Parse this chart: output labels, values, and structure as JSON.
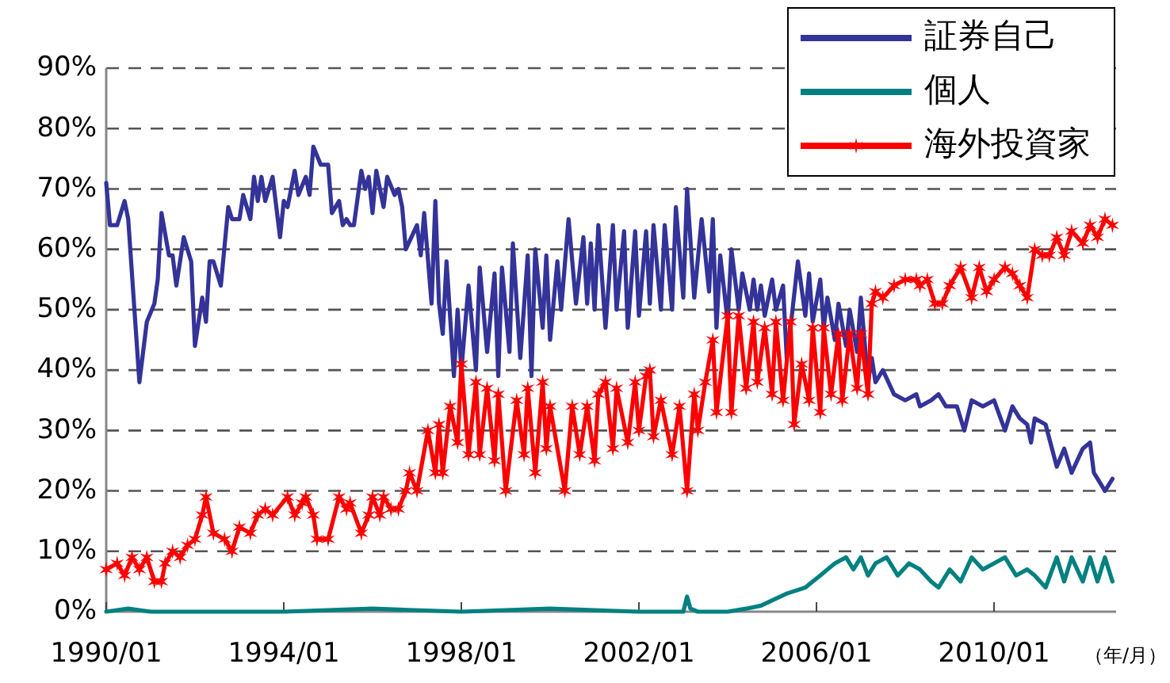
{
  "chart_data": {
    "type": "line",
    "xlabel": "（年/月）",
    "xlim": [
      "1990-01",
      "2012-10"
    ],
    "xticks": [
      {
        "value": "1990-01",
        "label": "1990/01"
      },
      {
        "value": "1994-01",
        "label": "1994/01"
      },
      {
        "value": "1998-01",
        "label": "1998/01"
      },
      {
        "value": "2002-01",
        "label": "2002/01"
      },
      {
        "value": "2006-01",
        "label": "2006/01"
      },
      {
        "value": "2010-01",
        "label": "2010/01"
      }
    ],
    "ylim": [
      0,
      90
    ],
    "yticks": [
      {
        "value": 0,
        "label": "0%"
      },
      {
        "value": 10,
        "label": "10%"
      },
      {
        "value": 20,
        "label": "20%"
      },
      {
        "value": 30,
        "label": "30%"
      },
      {
        "value": 40,
        "label": "40%"
      },
      {
        "value": 50,
        "label": "50%"
      },
      {
        "value": 60,
        "label": "60%"
      },
      {
        "value": 70,
        "label": "70%"
      },
      {
        "value": 80,
        "label": "80%"
      },
      {
        "value": 90,
        "label": "90%"
      }
    ],
    "grid": "y",
    "legend": "top right",
    "series": [
      {
        "name": "証券自己",
        "color": "#333399",
        "marker": "none",
        "x": [
          "1990-01",
          "1990-02",
          "1990-04",
          "1990-06",
          "1990-07",
          "1990-10",
          "1990-12",
          "1991-02",
          "1991-03",
          "1991-04",
          "1991-06",
          "1991-07",
          "1991-08",
          "1991-10",
          "1991-12",
          "1992-01",
          "1992-03",
          "1992-04",
          "1992-05",
          "1992-06",
          "1992-08",
          "1992-10",
          "1992-11",
          "1993-01",
          "1993-02",
          "1993-04",
          "1993-05",
          "1993-06",
          "1993-07",
          "1993-08",
          "1993-10",
          "1993-12",
          "1994-01",
          "1994-02",
          "1994-04",
          "1994-05",
          "1994-07",
          "1994-08",
          "1994-09",
          "1994-11",
          "1995-01",
          "1995-02",
          "1995-04",
          "1995-05",
          "1995-06",
          "1995-07",
          "1995-08",
          "1995-10",
          "1995-11",
          "1995-12",
          "1996-01",
          "1996-02",
          "1996-04",
          "1996-05",
          "1996-07",
          "1996-08",
          "1996-09",
          "1996-10",
          "1997-01",
          "1997-02",
          "1997-03",
          "1997-05",
          "1997-06",
          "1997-07",
          "1997-08",
          "1997-09",
          "1997-11",
          "1997-12",
          "1998-01",
          "1998-03",
          "1998-05",
          "1998-06",
          "1998-08",
          "1998-10",
          "1998-11",
          "1998-12",
          "1999-02",
          "1999-03",
          "1999-05",
          "1999-07",
          "1999-08",
          "1999-09",
          "1999-11",
          "1999-12",
          "2000-01",
          "2000-03",
          "2000-04",
          "2000-06",
          "2000-08",
          "2000-10",
          "2000-11",
          "2000-12",
          "2001-01",
          "2001-02",
          "2001-04",
          "2001-06",
          "2001-07",
          "2001-09",
          "2001-10",
          "2001-12",
          "2002-01",
          "2002-03",
          "2002-04",
          "2002-05",
          "2002-07",
          "2002-08",
          "2002-10",
          "2002-11",
          "2003-01",
          "2003-02",
          "2003-04",
          "2003-06",
          "2003-08",
          "2003-09",
          "2003-10",
          "2003-11",
          "2004-01",
          "2004-02",
          "2004-04",
          "2004-05",
          "2004-07",
          "2004-08",
          "2004-09",
          "2004-10",
          "2004-11",
          "2005-01",
          "2005-02",
          "2005-04",
          "2005-05",
          "2005-06",
          "2005-08",
          "2005-10",
          "2005-11",
          "2005-12",
          "2006-02",
          "2006-03",
          "2006-04",
          "2006-06",
          "2006-07",
          "2006-09",
          "2006-10",
          "2006-12",
          "2007-01",
          "2007-03",
          "2007-04",
          "2007-05",
          "2007-07",
          "2007-10",
          "2008-01",
          "2008-04",
          "2008-05",
          "2008-08",
          "2008-10",
          "2008-12",
          "2009-03",
          "2009-05",
          "2009-07",
          "2009-10",
          "2010-01",
          "2010-04",
          "2010-06",
          "2010-08",
          "2010-10",
          "2010-11",
          "2010-12",
          "2011-03",
          "2011-06",
          "2011-08",
          "2011-10",
          "2012-01",
          "2012-03",
          "2012-04",
          "2012-06",
          "2012-07",
          "2012-09"
        ],
        "values": [
          71,
          64,
          64,
          68,
          65,
          38,
          48,
          51,
          55,
          66,
          59,
          59,
          54,
          62,
          58,
          44,
          52,
          48,
          58,
          58,
          54,
          67,
          65,
          65,
          69,
          65,
          72,
          68,
          72,
          68,
          72,
          62,
          68,
          67,
          73,
          69,
          72,
          69,
          77,
          74,
          74,
          66,
          68,
          64,
          65,
          64,
          64,
          73,
          70,
          72,
          66,
          73,
          67,
          72,
          69,
          70,
          67,
          60,
          64,
          59,
          66,
          51,
          68,
          51,
          46,
          58,
          39,
          50,
          40,
          54,
          40,
          57,
          43,
          56,
          39,
          57,
          43,
          61,
          42,
          59,
          39,
          60,
          47,
          59,
          45,
          58,
          50,
          65,
          51,
          62,
          51,
          61,
          50,
          64,
          47,
          64,
          50,
          63,
          47,
          63,
          49,
          63,
          51,
          64,
          50,
          64,
          50,
          67,
          52,
          70,
          52,
          65,
          53,
          65,
          47,
          59,
          48,
          60,
          50,
          56,
          50,
          55,
          50,
          54,
          49,
          55,
          50,
          54,
          42,
          47,
          58,
          49,
          56,
          48,
          55,
          47,
          52,
          45,
          51,
          44,
          50,
          43,
          52,
          38,
          42,
          38,
          40,
          36,
          35,
          36,
          34,
          35,
          36,
          34,
          34,
          30,
          35,
          34,
          35,
          30,
          34,
          32,
          31,
          28,
          32,
          31,
          24,
          27,
          23,
          27,
          28,
          23,
          21,
          20,
          22
        ]
      },
      {
        "name": "個人",
        "color": "#008080",
        "marker": "none",
        "x": [
          "1990-01",
          "1990-07",
          "1991-01",
          "1994-01",
          "1996-01",
          "1998-01",
          "2000-01",
          "2002-01",
          "2003-01",
          "2003-02",
          "2003-03",
          "2003-05",
          "2004-01",
          "2004-06",
          "2004-10",
          "2005-05",
          "2005-10",
          "2006-02",
          "2006-06",
          "2006-09",
          "2006-11",
          "2007-01",
          "2007-03",
          "2007-05",
          "2007-08",
          "2007-11",
          "2008-02",
          "2008-05",
          "2008-08",
          "2008-10",
          "2009-01",
          "2009-04",
          "2009-07",
          "2009-10",
          "2010-01",
          "2010-04",
          "2010-07",
          "2010-10",
          "2010-12",
          "2011-03",
          "2011-06",
          "2011-08",
          "2011-10",
          "2012-01",
          "2012-03",
          "2012-05",
          "2012-07",
          "2012-09"
        ],
        "values": [
          0,
          0.5,
          0,
          0,
          0.5,
          0,
          0.5,
          0,
          0,
          2.5,
          0.5,
          0,
          0,
          0.5,
          1,
          3,
          4,
          6,
          8,
          9,
          7,
          9,
          6,
          8,
          9,
          6,
          8,
          7,
          5,
          4,
          7,
          5,
          9,
          7,
          8,
          9,
          6,
          7,
          6,
          4,
          9,
          5,
          9,
          5,
          9,
          5,
          9,
          5
        ]
      },
      {
        "name": "海外投資家",
        "color": "#ff0000",
        "marker": "cross",
        "x": [
          "1990-01",
          "1990-04",
          "1990-06",
          "1990-08",
          "1990-10",
          "1990-12",
          "1991-02",
          "1991-04",
          "1991-05",
          "1991-07",
          "1991-09",
          "1991-11",
          "1992-01",
          "1992-03",
          "1992-04",
          "1992-06",
          "1992-09",
          "1992-11",
          "1993-01",
          "1993-04",
          "1993-06",
          "1993-08",
          "1993-10",
          "1994-02",
          "1994-04",
          "1994-06",
          "1994-07",
          "1994-09",
          "1994-10",
          "1995-01",
          "1995-04",
          "1995-06",
          "1995-07",
          "1995-10",
          "1995-12",
          "1996-01",
          "1996-03",
          "1996-04",
          "1996-06",
          "1996-08",
          "1996-10",
          "1996-11",
          "1997-01",
          "1997-04",
          "1997-06",
          "1997-07",
          "1997-08",
          "1997-10",
          "1997-12",
          "1998-01",
          "1998-03",
          "1998-05",
          "1998-06",
          "1998-08",
          "1998-10",
          "1998-11",
          "1999-01",
          "1999-04",
          "1999-06",
          "1999-07",
          "1999-09",
          "1999-11",
          "1999-12",
          "2000-01",
          "2000-05",
          "2000-07",
          "2000-09",
          "2000-11",
          "2001-01",
          "2001-02",
          "2001-04",
          "2001-06",
          "2001-07",
          "2001-10",
          "2001-12",
          "2002-01",
          "2002-03",
          "2002-04",
          "2002-05",
          "2002-07",
          "2002-10",
          "2002-12",
          "2003-02",
          "2003-04",
          "2003-05",
          "2003-07",
          "2003-09",
          "2003-10",
          "2004-01",
          "2004-02",
          "2004-04",
          "2004-06",
          "2004-08",
          "2004-09",
          "2004-11",
          "2005-01",
          "2005-02",
          "2005-04",
          "2005-06",
          "2005-07",
          "2005-09",
          "2005-11",
          "2005-12",
          "2006-02",
          "2006-03",
          "2006-05",
          "2006-07",
          "2006-08",
          "2006-10",
          "2006-12",
          "2007-01",
          "2007-03",
          "2007-04",
          "2007-05",
          "2007-07",
          "2007-10",
          "2008-01",
          "2008-04",
          "2008-05",
          "2008-07",
          "2008-09",
          "2008-11",
          "2009-01",
          "2009-04",
          "2009-07",
          "2009-09",
          "2009-11",
          "2010-01",
          "2010-04",
          "2010-06",
          "2010-08",
          "2010-10",
          "2010-12",
          "2011-02",
          "2011-04",
          "2011-06",
          "2011-08",
          "2011-10",
          "2012-01",
          "2012-03",
          "2012-05",
          "2012-07",
          "2012-09"
        ],
        "values": [
          7,
          8,
          6,
          9,
          7,
          9,
          5,
          5,
          8,
          10,
          9,
          11,
          12,
          16,
          19,
          13,
          12,
          10,
          14,
          13,
          16,
          17,
          16,
          19,
          16,
          18,
          19,
          16,
          12,
          12,
          19,
          17,
          18,
          13,
          16,
          19,
          16,
          19,
          17,
          17,
          20,
          23,
          20,
          30,
          23,
          31,
          23,
          34,
          28,
          41,
          26,
          38,
          26,
          37,
          25,
          36,
          20,
          35,
          26,
          37,
          23,
          38,
          27,
          34,
          20,
          34,
          26,
          34,
          25,
          36,
          38,
          27,
          37,
          28,
          38,
          30,
          39,
          40,
          29,
          35,
          26,
          34,
          20,
          36,
          30,
          38,
          45,
          33,
          49,
          33,
          49,
          37,
          48,
          38,
          47,
          36,
          48,
          35,
          48,
          31,
          41,
          35,
          47,
          33,
          47,
          36,
          46,
          35,
          46,
          37,
          46,
          36,
          51,
          53,
          52,
          54,
          55,
          55,
          54,
          55,
          51,
          51,
          54,
          57,
          52,
          57,
          53,
          55,
          57,
          56,
          54,
          52,
          60,
          59,
          59,
          62,
          59,
          63,
          61,
          64,
          62,
          65,
          64
        ]
      }
    ]
  }
}
